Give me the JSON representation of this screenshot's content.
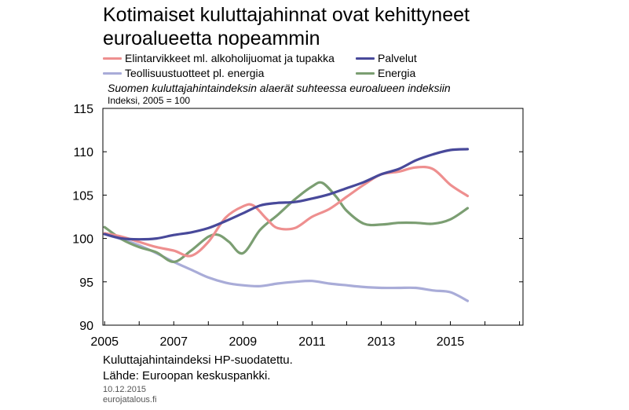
{
  "title_line1": "Kotimaiset kuluttajahinnat ovat kehittyneet",
  "title_line2": "euroalueetta nopeammin",
  "subtitle": "Suomen kuluttajahintaindeksin alaerät suhteessa euroalueen indeksiin",
  "unit_label": "Indeksi, 2005 = 100",
  "note1": "Kuluttajahintaindeksi HP-suodatettu.",
  "note2": "Lähde: Euroopan keskuspankki.",
  "date": "10.12.2015",
  "source_site": "eurojatalous.fi",
  "chart_data": {
    "type": "line",
    "title": "Kotimaiset kuluttajahinnat ovat kehittyneet euroalueetta nopeammin",
    "subtitle": "Suomen kuluttajahintaindeksin alaerät suhteessa euroalueen indeksiin",
    "ylabel": "Indeksi, 2005 = 100",
    "xlabel": "",
    "xlim": [
      2004.95,
      2017.1
    ],
    "ylim": [
      90,
      115
    ],
    "yticks": [
      90,
      95,
      100,
      105,
      110,
      115
    ],
    "xtick_labels": [
      "2005",
      "2007",
      "2009",
      "2011",
      "2013",
      "2015"
    ],
    "legend_position": "top",
    "grid": false,
    "series": [
      {
        "name": "Elintarvikkeet ml. alkoholijuomat ja tupakka",
        "color": "#ee8f8f",
        "x": [
          2005.0,
          2005.5,
          2006.0,
          2006.5,
          2007.0,
          2007.5,
          2008.0,
          2008.5,
          2009.0,
          2009.3,
          2009.7,
          2010.0,
          2010.5,
          2011.0,
          2011.5,
          2012.0,
          2012.5,
          2013.0,
          2013.5,
          2014.0,
          2014.5,
          2015.0,
          2015.5
        ],
        "values": [
          100.6,
          100.2,
          99.6,
          99.0,
          98.6,
          98.0,
          99.6,
          102.4,
          103.7,
          103.8,
          102.2,
          101.2,
          101.2,
          102.5,
          103.4,
          104.8,
          106.2,
          107.4,
          107.7,
          108.2,
          108.0,
          106.2,
          104.9
        ]
      },
      {
        "name": "Palvelut",
        "color": "#48499a",
        "x": [
          2005.0,
          2005.5,
          2006.0,
          2006.5,
          2007.0,
          2007.5,
          2008.0,
          2008.5,
          2009.0,
          2009.5,
          2010.0,
          2010.5,
          2011.0,
          2011.5,
          2012.0,
          2012.5,
          2013.0,
          2013.5,
          2014.0,
          2014.5,
          2015.0,
          2015.5
        ],
        "values": [
          100.5,
          100.0,
          99.9,
          100.0,
          100.4,
          100.7,
          101.2,
          102.0,
          102.9,
          103.8,
          104.1,
          104.2,
          104.6,
          105.1,
          105.8,
          106.5,
          107.4,
          108.0,
          109.0,
          109.7,
          110.2,
          110.3
        ]
      },
      {
        "name": "Teollisuustuotteet pl. energia",
        "color": "#a9acd8",
        "x": [
          2005.0,
          2005.5,
          2006.0,
          2006.5,
          2007.0,
          2007.5,
          2008.0,
          2008.5,
          2009.0,
          2009.5,
          2010.0,
          2010.5,
          2011.0,
          2011.5,
          2012.0,
          2012.5,
          2013.0,
          2013.5,
          2014.0,
          2014.5,
          2015.0,
          2015.5
        ],
        "values": [
          100.5,
          99.9,
          99.2,
          98.3,
          97.3,
          96.4,
          95.5,
          94.9,
          94.6,
          94.5,
          94.8,
          95.0,
          95.1,
          94.8,
          94.6,
          94.4,
          94.3,
          94.3,
          94.3,
          94.0,
          93.8,
          92.8
        ]
      },
      {
        "name": "Energia",
        "color": "#7b9e72",
        "x": [
          2005.0,
          2005.5,
          2006.0,
          2006.5,
          2007.0,
          2007.5,
          2008.0,
          2008.3,
          2008.6,
          2009.0,
          2009.5,
          2010.0,
          2010.5,
          2011.0,
          2011.3,
          2011.7,
          2012.0,
          2012.5,
          2013.0,
          2013.5,
          2014.0,
          2014.5,
          2015.0,
          2015.5
        ],
        "values": [
          101.3,
          99.9,
          99.0,
          98.4,
          97.3,
          98.6,
          100.2,
          100.4,
          99.6,
          98.3,
          101.0,
          102.7,
          104.5,
          106.0,
          106.4,
          104.8,
          103.2,
          101.7,
          101.6,
          101.8,
          101.8,
          101.7,
          102.2,
          103.5
        ]
      }
    ]
  }
}
